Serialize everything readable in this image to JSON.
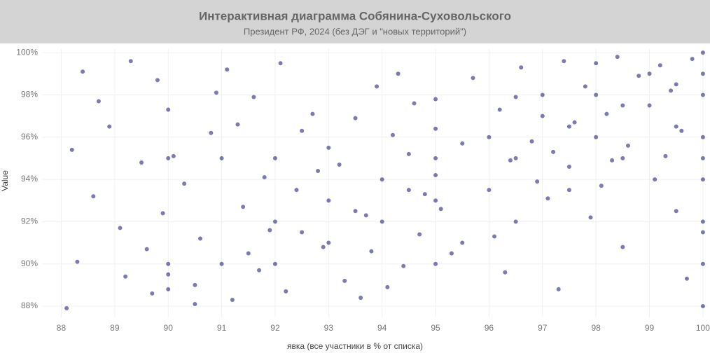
{
  "chart_data": {
    "type": "scatter",
    "title": "Интерактивная диаграмма Собянина-Суховольского",
    "subtitle": "Президент РФ, 2024 (без ДЭГ и \"новых территорий\")",
    "x_label": "явка (все участники в % от списка)",
    "y_label": "Value",
    "xlim": [
      87.64,
      100.08
    ],
    "ylim": [
      87.47,
      100.17
    ],
    "xticks": [
      88,
      89,
      90,
      91,
      92,
      93,
      94,
      95,
      96,
      97,
      98,
      99,
      100
    ],
    "yticks": [
      {
        "value": 88,
        "label": "88%"
      },
      {
        "value": 90,
        "label": "90%"
      },
      {
        "value": 92,
        "label": "92%"
      },
      {
        "value": 94,
        "label": "94%"
      },
      {
        "value": 96,
        "label": "96%"
      },
      {
        "value": 98,
        "label": "98%"
      },
      {
        "value": 100,
        "label": "100%"
      }
    ],
    "grid": true,
    "x": [
      88.1,
      88.3,
      88.6,
      88.9,
      89.2,
      89.5,
      89.8,
      88.4,
      89.1,
      89.7,
      90,
      90,
      90,
      90.1,
      89.9,
      90,
      90,
      90.3,
      90.6,
      90.8,
      91,
      91,
      91.2,
      91.4,
      91.6,
      91.8,
      91.1,
      90.5,
      91.3,
      91.7,
      92,
      92,
      92,
      92.2,
      92.4,
      92.7,
      92.9,
      92.1,
      92.5,
      92.8,
      93,
      93,
      93,
      93.3,
      93.5,
      93.7,
      93.9,
      93.2,
      93.6,
      93.8,
      94,
      94,
      94.2,
      94.4,
      94.6,
      94.8,
      94.3,
      94.7,
      94.5,
      94.1,
      95,
      95,
      95,
      95,
      95,
      95.1,
      95,
      95.3,
      95.5,
      95.7,
      96,
      96,
      96.2,
      96.4,
      96.6,
      96.8,
      96.1,
      96.5,
      96.3,
      96.9,
      97,
      97,
      97.2,
      97.4,
      97.6,
      97.8,
      97.1,
      97.5,
      97.9,
      97.3,
      98,
      98,
      98,
      98.2,
      98.4,
      98.6,
      98.8,
      98.1,
      98.5,
      98.3,
      99,
      99,
      99.2,
      99.4,
      99.6,
      99.8,
      99.3,
      99.5,
      99.7,
      99.1,
      100,
      100,
      100,
      100,
      100,
      100,
      100,
      100,
      100,
      100,
      90.5,
      91.5,
      92.5,
      93.5,
      94.5,
      96.5,
      97.5,
      98.5,
      99.5,
      95.5,
      96.5,
      97.5,
      98.5,
      99.5,
      88.2,
      88.7,
      89.3,
      89.6,
      90.9,
      91.9
    ],
    "series": [
      {
        "color": "#23237f",
        "values": [
          87.9,
          90.1,
          93.2,
          96.5,
          89.4,
          94.8,
          98.7,
          99.1,
          91.7,
          88.6,
          95,
          90,
          88.8,
          95.1,
          92.4,
          97.3,
          89.5,
          93.8,
          91.2,
          96.2,
          95,
          90,
          88.3,
          92.7,
          97.9,
          94.1,
          99.2,
          88.1,
          96.6,
          89.7,
          92,
          90,
          95,
          88.7,
          93.5,
          97.1,
          90.8,
          99.5,
          96.3,
          94.4,
          93,
          91,
          95.5,
          89.2,
          96.9,
          92.3,
          98.4,
          94.7,
          88.4,
          90.6,
          94,
          92,
          96.1,
          89.9,
          97.6,
          93.3,
          99,
          91.4,
          95.2,
          88.9,
          95,
          93,
          90,
          97.8,
          94.2,
          92.6,
          96.4,
          90.5,
          95.7,
          98.8,
          96,
          93.5,
          97.3,
          94.9,
          99.3,
          95.8,
          91.3,
          97.9,
          89.6,
          93.9,
          97,
          98,
          95.3,
          99.6,
          96.7,
          98.4,
          93.1,
          94.6,
          92.2,
          88.8,
          98,
          96,
          99.5,
          97.1,
          99.8,
          95.6,
          98.9,
          93.7,
          90.8,
          94.9,
          99,
          97.5,
          99.4,
          98.2,
          96.3,
          99.7,
          95.1,
          92.5,
          89.3,
          94,
          100,
          98,
          96,
          94,
          92,
          91.5,
          90,
          88,
          99,
          95,
          89,
          90.5,
          91.5,
          92.5,
          93.5,
          95,
          96.5,
          97.5,
          98.5,
          91,
          92,
          93.5,
          95,
          96.5,
          95.4,
          97.7,
          99.6,
          90.7,
          98.1,
          91.6
        ]
      }
    ]
  }
}
